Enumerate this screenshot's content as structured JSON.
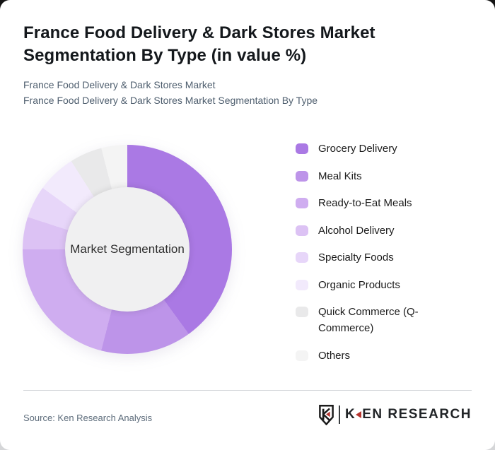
{
  "page": {
    "title": "France Food Delivery & Dark Stores Market Segmentation By Type (in value %)",
    "subtitle_line1": "France Food Delivery & Dark Stores Market",
    "subtitle_line2": "France Food Delivery & Dark Stores Market Segmentation By Type"
  },
  "chart_data": {
    "type": "pie",
    "subtype": "donut",
    "title": "France Food Delivery & Dark Stores Market Segmentation By Type (in value %)",
    "center_label": "Market Segmentation",
    "unit": "% of market value",
    "start_angle_deg": 0,
    "direction": "clockwise",
    "legend_position": "right",
    "categories": [
      "Grocery Delivery",
      "Meal Kits",
      "Ready-to-Eat Meals",
      "Alcohol Delivery",
      "Specialty Foods",
      "Organic Products",
      "Quick Commerce (Q-Commerce)",
      "Others"
    ],
    "values": [
      40,
      14,
      21,
      5,
      5,
      6,
      5,
      4
    ],
    "colors": [
      "#aa79e4",
      "#bd94e9",
      "#cfadf0",
      "#dcc2f4",
      "#e7d6f9",
      "#f2eafc",
      "#e9e9ea",
      "#f4f4f4"
    ],
    "hole_color": "#f0f0f1"
  },
  "footer": {
    "source_label": "Source: Ken Research Analysis",
    "logo": {
      "brand_k": "K",
      "brand_rest": "EN RESEARCH",
      "accent_color": "#b5342e",
      "text_color": "#212427"
    }
  },
  "theme": {
    "card_bg": "#ffffff",
    "title_color": "#14181c",
    "subtitle_color": "#4e5e6e",
    "outer_bg_top": "#141414",
    "outer_bg_bottom": "#d5d6d8"
  }
}
